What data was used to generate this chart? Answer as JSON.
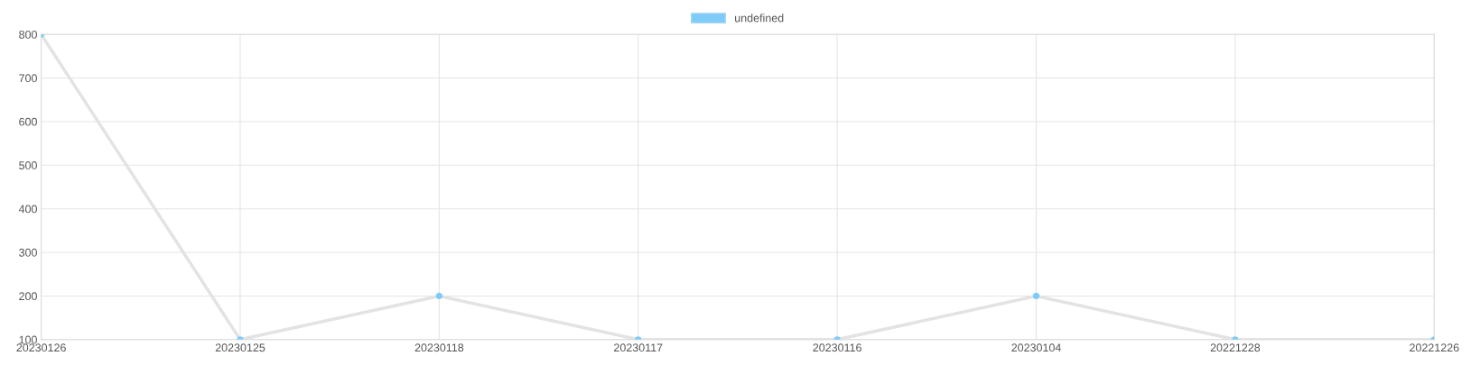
{
  "chart_data": {
    "type": "line",
    "categories": [
      "20230126",
      "20230125",
      "20230118",
      "20230117",
      "20230116",
      "20230104",
      "20221228",
      "20221226"
    ],
    "series": [
      {
        "name": "undefined",
        "color": "#7ecbf7",
        "values": [
          800,
          100,
          200,
          100,
          100,
          200,
          100,
          100
        ]
      }
    ],
    "ylim": [
      100,
      800
    ],
    "yticks": [
      100,
      200,
      300,
      400,
      500,
      600,
      700,
      800
    ],
    "grid": true,
    "legend": "top",
    "marker": "circle",
    "line_style": "solid"
  }
}
